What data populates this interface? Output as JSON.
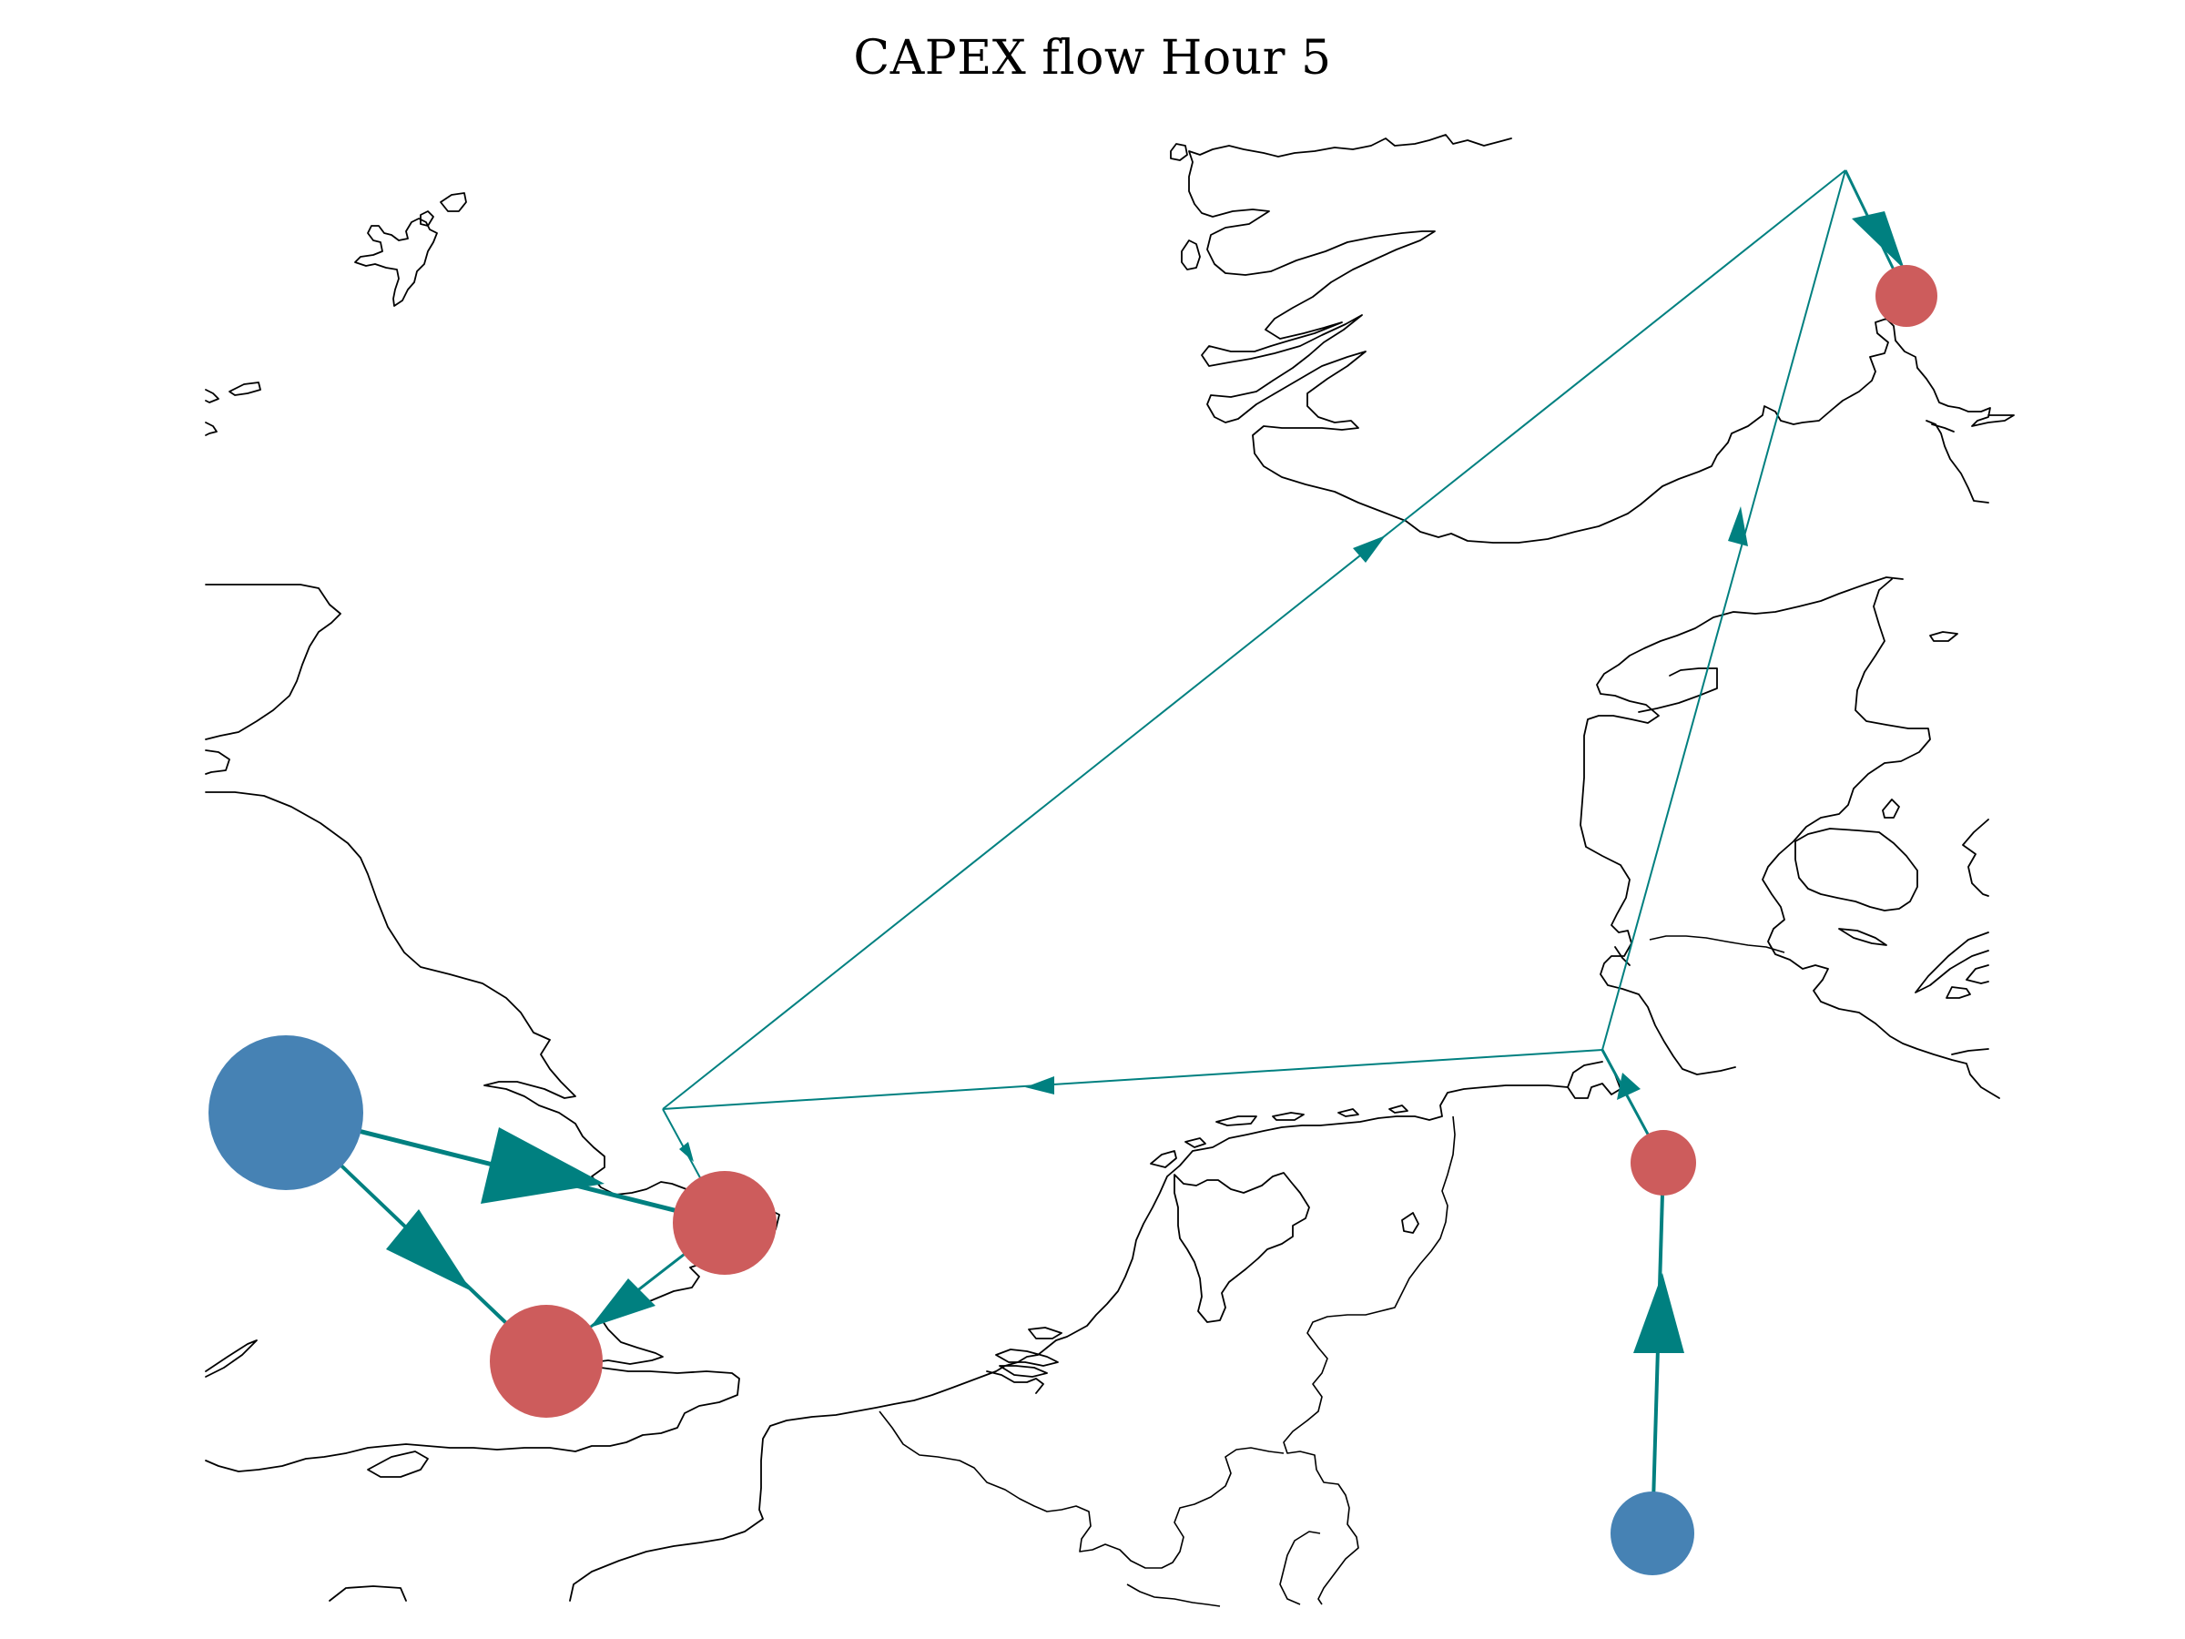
{
  "title": "CAPEX flow Hour 5",
  "colors": {
    "flow": "#008080",
    "supply_node": "#4682B4",
    "demand_node": "#CD5C5C",
    "coastline": "#000000",
    "background": "#FFFFFF"
  },
  "nodes": [
    {
      "id": "uk-generator",
      "kind": "supply",
      "relative_size": "large"
    },
    {
      "id": "uk-east-node",
      "kind": "demand",
      "relative_size": "medium"
    },
    {
      "id": "uk-south-node",
      "kind": "demand",
      "relative_size": "medium"
    },
    {
      "id": "north-sea-hub-west",
      "kind": "junction",
      "relative_size": "none"
    },
    {
      "id": "north-sea-hub-east",
      "kind": "junction",
      "relative_size": "none"
    },
    {
      "id": "north-sea-hub-north",
      "kind": "junction",
      "relative_size": "none"
    },
    {
      "id": "norway-node",
      "kind": "demand",
      "relative_size": "small"
    },
    {
      "id": "germany-coast-node",
      "kind": "demand",
      "relative_size": "small"
    },
    {
      "id": "germany-generator",
      "kind": "supply",
      "relative_size": "small-medium"
    }
  ],
  "flows": [
    {
      "from": "uk-generator",
      "to": "uk-east-node",
      "magnitude": "large"
    },
    {
      "from": "uk-generator",
      "to": "uk-south-node",
      "magnitude": "medium"
    },
    {
      "from": "uk-east-node",
      "to": "uk-south-node",
      "magnitude": "small"
    },
    {
      "from": "uk-east-node",
      "to": "north-sea-hub-west",
      "magnitude": "very small"
    },
    {
      "from": "north-sea-hub-west",
      "to": "north-sea-hub-north",
      "magnitude": "very small"
    },
    {
      "from": "north-sea-hub-east",
      "to": "north-sea-hub-west",
      "magnitude": "very small"
    },
    {
      "from": "north-sea-hub-east",
      "to": "north-sea-hub-north",
      "magnitude": "very small"
    },
    {
      "from": "north-sea-hub-north",
      "to": "norway-node",
      "magnitude": "small"
    },
    {
      "from": "germany-coast-node",
      "to": "north-sea-hub-east",
      "magnitude": "small"
    },
    {
      "from": "germany-generator",
      "to": "germany-coast-node",
      "magnitude": "medium"
    }
  ]
}
